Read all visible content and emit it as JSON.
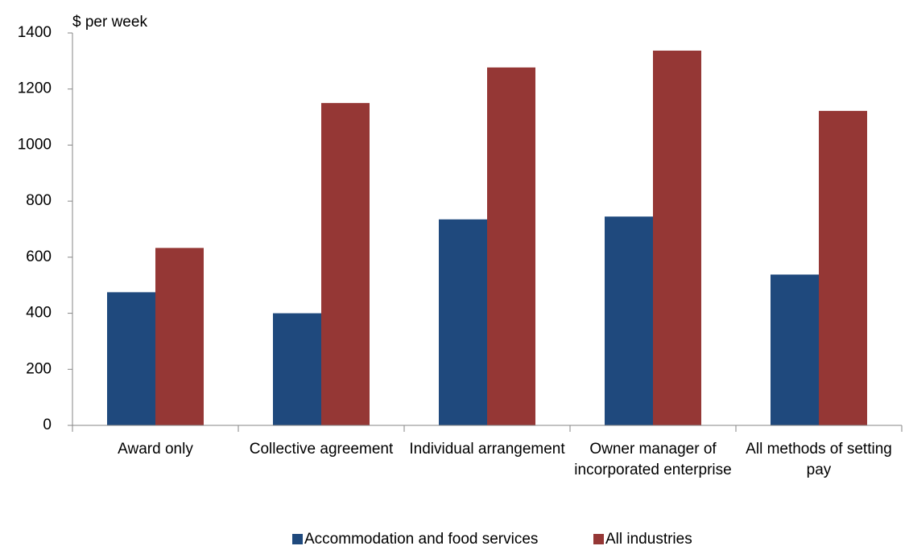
{
  "chart_data": {
    "type": "bar",
    "y_axis_label": "$ per week",
    "categories": [
      "Award only",
      "Collective agreement",
      "Individual arrangement",
      "Owner manager of incorporated enterprise",
      "All methods of setting pay"
    ],
    "series": [
      {
        "name": "Accommodation and food services",
        "color": "#1f497d",
        "values": [
          475,
          400,
          735,
          745,
          538
        ]
      },
      {
        "name": "All industries",
        "color": "#953735",
        "values": [
          633,
          1150,
          1277,
          1337,
          1122
        ]
      }
    ],
    "ylim": [
      0,
      1400
    ],
    "yticks": [
      0,
      200,
      400,
      600,
      800,
      1000,
      1200,
      1400
    ],
    "grid": false,
    "legend": "bottom"
  }
}
